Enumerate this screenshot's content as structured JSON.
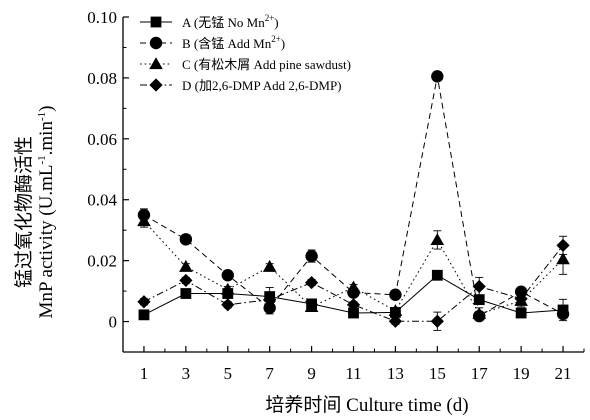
{
  "chart_data": {
    "type": "line",
    "title": "",
    "xlabel": "培养时间 Culture time (d)",
    "ylabel": {
      "line1": "锰过氧化物酶活性",
      "line2_main": "MnP activity (U.mL",
      "line2_sup1": "-1",
      "line2_mid": ".min",
      "line2_sup2": "-1",
      "line2_end": ")"
    },
    "x": [
      1,
      3,
      5,
      7,
      9,
      11,
      13,
      15,
      17,
      19,
      21
    ],
    "x_tick_labels": [
      "1",
      "3",
      "5",
      "7",
      "9",
      "11",
      "13",
      "15",
      "17",
      "19",
      "21"
    ],
    "xlim": [
      0,
      22
    ],
    "ylim": [
      -0.01,
      0.1
    ],
    "y_ticks": [
      0,
      0.02,
      0.04,
      0.06,
      0.08,
      0.1
    ],
    "y_tick_labels": [
      "0",
      "0.02",
      "0.04",
      "0.06",
      "0.08",
      "0.10"
    ],
    "grid": false,
    "legend_position": "top-left",
    "series": [
      {
        "name": "A (无锰 No Mn",
        "name_sup": "2+",
        "name_end": ")",
        "marker": "square",
        "dash": "solid",
        "values": [
          0.0022,
          0.0092,
          0.0092,
          0.0082,
          0.0058,
          0.0028,
          0.003,
          0.0152,
          0.0072,
          0.0028,
          0.0038
        ],
        "errors": [
          0.001,
          0.0008,
          0.0012,
          0.003,
          0.001,
          0.0008,
          0.001,
          0.001,
          0.001,
          0.0008,
          0.0035
        ]
      },
      {
        "name": "B (含锰 Add Mn",
        "name_sup": "2+",
        "name_end": ")",
        "marker": "circle",
        "dash": "dashed",
        "values": [
          0.035,
          0.027,
          0.0152,
          0.0045,
          0.0215,
          0.0095,
          0.0088,
          0.0805,
          0.0018,
          0.0098,
          0.0025
        ],
        "errors": [
          0.002,
          0.001,
          0.001,
          0.002,
          0.002,
          0.001,
          0.001,
          0.001,
          0.001,
          0.001,
          0.001
        ]
      },
      {
        "name": "C (有松木屑 Add pine sawdust)",
        "marker": "triangle",
        "dash": "dotted",
        "values": [
          0.033,
          0.018,
          0.0105,
          0.018,
          0.0048,
          0.0112,
          0.0035,
          0.0268,
          0.0025,
          0.0068,
          0.0205
        ],
        "errors": [
          0.002,
          0.001,
          0.001,
          0.001,
          0.001,
          0.001,
          0.001,
          0.003,
          0.002,
          0.002,
          0.005
        ]
      },
      {
        "name": "D (加2,6-DMP Add 2,6-DMP)",
        "marker": "diamond",
        "dash": "dashdot",
        "values": [
          0.0065,
          0.0135,
          0.0055,
          0.0072,
          0.0128,
          0.0055,
          0.0001,
          0.0001,
          0.0115,
          0.0075,
          0.025
        ],
        "errors": [
          0.001,
          0.001,
          0.001,
          0.001,
          0.001,
          0.001,
          0.001,
          0.003,
          0.003,
          0.001,
          0.003
        ]
      }
    ]
  }
}
